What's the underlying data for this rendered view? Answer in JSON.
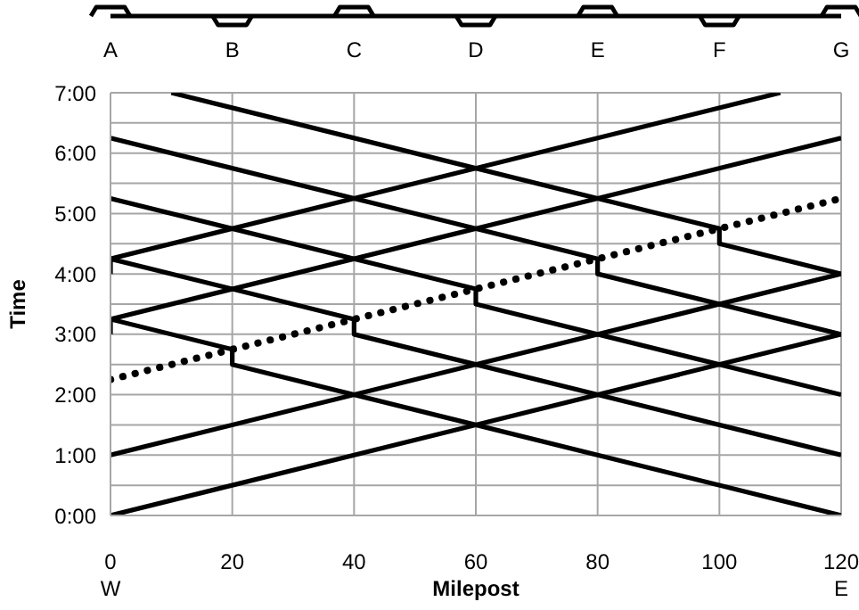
{
  "chart_data": {
    "type": "line",
    "xlabel": "Milepost",
    "ylabel": "Time",
    "annotations": [
      "A",
      "B",
      "C",
      "D",
      "E",
      "F",
      "G",
      "W",
      "E"
    ],
    "xlim": [
      0,
      120
    ],
    "xticks": [
      0,
      20,
      40,
      60,
      80,
      100,
      120
    ],
    "ylim": [
      0,
      7
    ],
    "yticks": [
      {
        "value": 0,
        "label": "0:00"
      },
      {
        "value": 0.5,
        "label": null
      },
      {
        "value": 1,
        "label": "1:00"
      },
      {
        "value": 1.5,
        "label": null
      },
      {
        "value": 2,
        "label": "2:00"
      },
      {
        "value": 2.5,
        "label": null
      },
      {
        "value": 3,
        "label": "3:00"
      },
      {
        "value": 3.5,
        "label": null
      },
      {
        "value": 4,
        "label": "4:00"
      },
      {
        "value": 4.5,
        "label": null
      },
      {
        "value": 5,
        "label": "5:00"
      },
      {
        "value": 5.5,
        "label": null
      },
      {
        "value": 6,
        "label": "6:00"
      },
      {
        "value": 6.5,
        "label": null
      },
      {
        "value": 7,
        "label": "7:00"
      }
    ],
    "grid": true,
    "marker": "none",
    "line_style": "solid",
    "series": [
      {
        "color": "#000000",
        "x": [
          0,
          120
        ],
        "values": [
          0,
          3
        ]
      },
      {
        "color": "#000000",
        "x": [
          0,
          120
        ],
        "values": [
          1,
          4
        ]
      },
      {
        "color": "#000000",
        "x": [
          0,
          0,
          120
        ],
        "values": [
          3,
          3.25,
          6.25
        ]
      },
      {
        "color": "#000000",
        "x": [
          0,
          0,
          110
        ],
        "values": [
          4,
          4.25,
          7
        ]
      },
      {
        "color": "#000000",
        "x": [
          120,
          20,
          20,
          0
        ],
        "values": [
          0,
          2.5,
          2.75,
          3.25
        ]
      },
      {
        "color": "#000000",
        "x": [
          120,
          40,
          40,
          0
        ],
        "values": [
          1,
          3,
          3.25,
          4.25
        ]
      },
      {
        "color": "#000000",
        "x": [
          120,
          60,
          60,
          0
        ],
        "values": [
          2,
          3.5,
          3.75,
          5.25
        ]
      },
      {
        "color": "#000000",
        "x": [
          120,
          80,
          80,
          0
        ],
        "values": [
          3,
          4,
          4.25,
          6.25
        ]
      },
      {
        "color": "#000000",
        "x": [
          120,
          100,
          100,
          10
        ],
        "values": [
          4,
          4.5,
          4.75,
          7
        ]
      },
      {
        "color": "#000000",
        "line_style": "dotted",
        "x": [
          0,
          120
        ],
        "values": [
          2.25,
          5.25
        ]
      }
    ]
  }
}
